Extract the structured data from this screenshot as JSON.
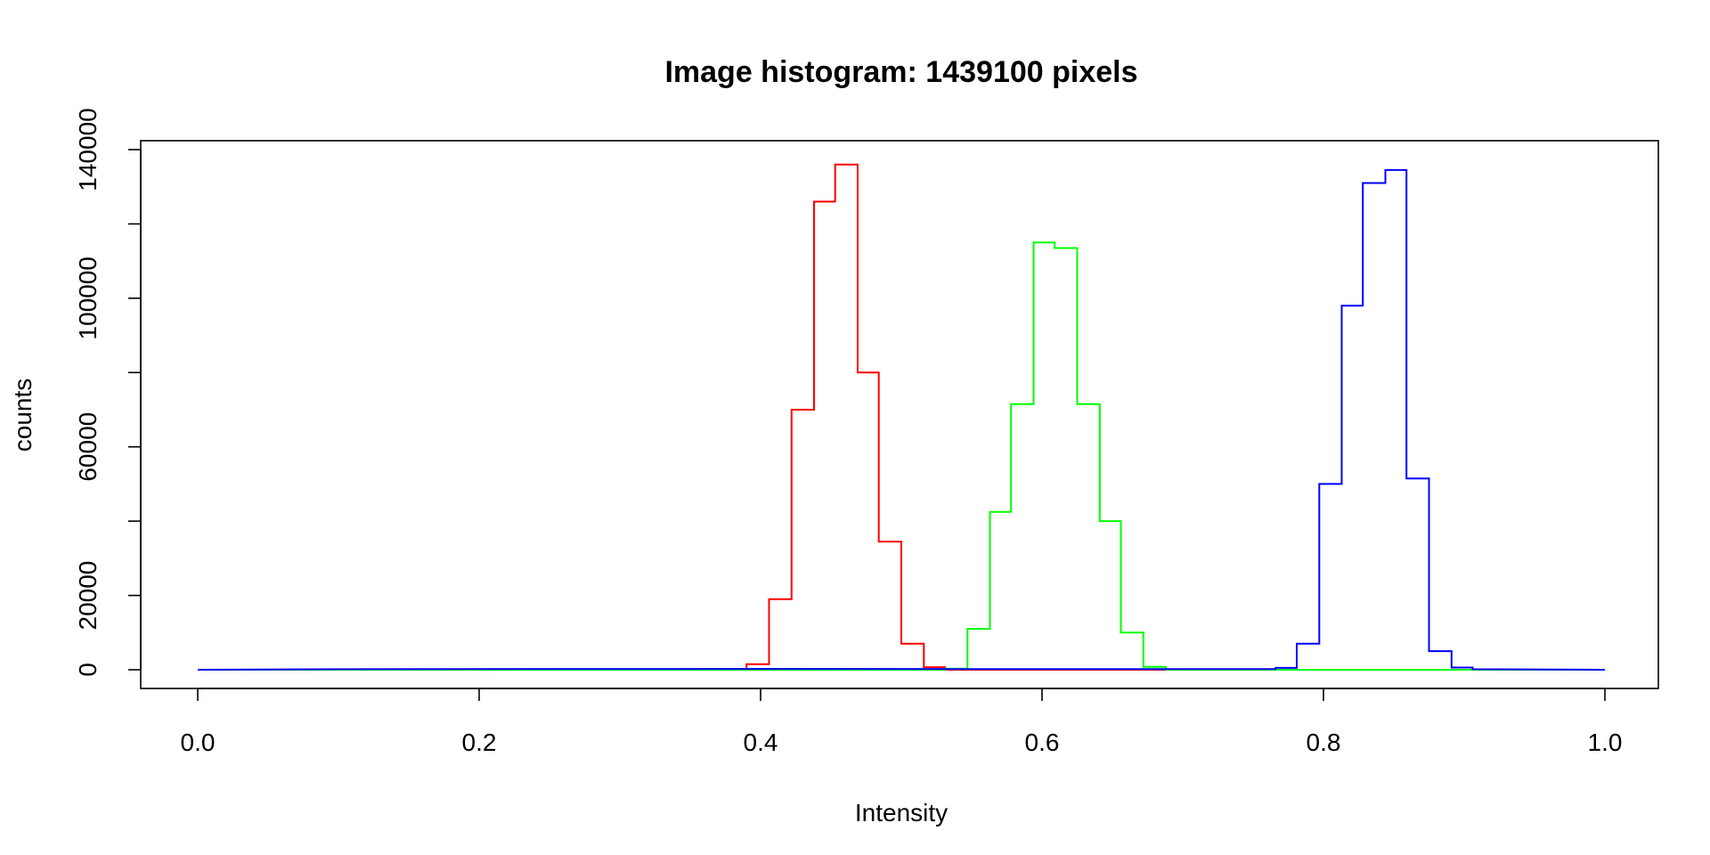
{
  "chart_data": {
    "type": "line",
    "style": "histogram-steps",
    "title": "Image histogram: 1439100 pixels",
    "xlabel": "Intensity",
    "ylabel": "counts",
    "xlim": [
      0,
      1
    ],
    "ylim": [
      0,
      140000
    ],
    "grid": false,
    "legend": "none",
    "x_ticks": [
      0.0,
      0.2,
      0.4,
      0.6,
      0.8,
      1.0
    ],
    "x_tick_labels": [
      "0.0",
      "0.2",
      "0.4",
      "0.6",
      "0.8",
      "1.0"
    ],
    "y_ticks": [
      0,
      20000,
      40000,
      60000,
      80000,
      100000,
      120000,
      140000
    ],
    "y_tick_labels": [
      "0",
      "20000",
      "",
      "60000",
      "",
      "100000",
      "",
      "140000"
    ],
    "bins": 64,
    "series": [
      {
        "color": "#ff0000",
        "points": [
          [
            0.0,
            0
          ],
          [
            0.39,
            0
          ],
          [
            0.39,
            1500
          ],
          [
            0.406,
            1500
          ],
          [
            0.406,
            19000
          ],
          [
            0.422,
            19000
          ],
          [
            0.422,
            70000
          ],
          [
            0.438,
            70000
          ],
          [
            0.438,
            126000
          ],
          [
            0.453,
            126000
          ],
          [
            0.453,
            136000
          ],
          [
            0.469,
            136000
          ],
          [
            0.469,
            80000
          ],
          [
            0.484,
            80000
          ],
          [
            0.484,
            34500
          ],
          [
            0.5,
            34500
          ],
          [
            0.5,
            7000
          ],
          [
            0.516,
            7000
          ],
          [
            0.516,
            700
          ],
          [
            0.531,
            700
          ],
          [
            0.531,
            0
          ],
          [
            1.0,
            0
          ]
        ]
      },
      {
        "color": "#00ff00",
        "points": [
          [
            0.0,
            0
          ],
          [
            0.531,
            0
          ],
          [
            0.531,
            300
          ],
          [
            0.547,
            300
          ],
          [
            0.547,
            11000
          ],
          [
            0.563,
            11000
          ],
          [
            0.563,
            42500
          ],
          [
            0.578,
            42500
          ],
          [
            0.578,
            71500
          ],
          [
            0.594,
            71500
          ],
          [
            0.594,
            115000
          ],
          [
            0.609,
            115000
          ],
          [
            0.609,
            113500
          ],
          [
            0.625,
            113500
          ],
          [
            0.625,
            71500
          ],
          [
            0.641,
            71500
          ],
          [
            0.641,
            40000
          ],
          [
            0.656,
            40000
          ],
          [
            0.656,
            10000
          ],
          [
            0.672,
            10000
          ],
          [
            0.672,
            800
          ],
          [
            0.688,
            800
          ],
          [
            0.688,
            0
          ],
          [
            1.0,
            0
          ]
        ]
      },
      {
        "color": "#0000ff",
        "points": [
          [
            0.0,
            0
          ],
          [
            0.1,
            150
          ],
          [
            0.39,
            250
          ],
          [
            0.55,
            200
          ],
          [
            0.75,
            200
          ],
          [
            0.766,
            200
          ],
          [
            0.766,
            500
          ],
          [
            0.781,
            500
          ],
          [
            0.781,
            7000
          ],
          [
            0.797,
            7000
          ],
          [
            0.797,
            50000
          ],
          [
            0.813,
            50000
          ],
          [
            0.813,
            98000
          ],
          [
            0.828,
            98000
          ],
          [
            0.828,
            131000
          ],
          [
            0.844,
            131000
          ],
          [
            0.844,
            134500
          ],
          [
            0.859,
            134500
          ],
          [
            0.859,
            51500
          ],
          [
            0.875,
            51500
          ],
          [
            0.875,
            5000
          ],
          [
            0.891,
            5000
          ],
          [
            0.891,
            600
          ],
          [
            0.906,
            600
          ],
          [
            0.906,
            150
          ],
          [
            1.0,
            0
          ]
        ]
      }
    ]
  }
}
